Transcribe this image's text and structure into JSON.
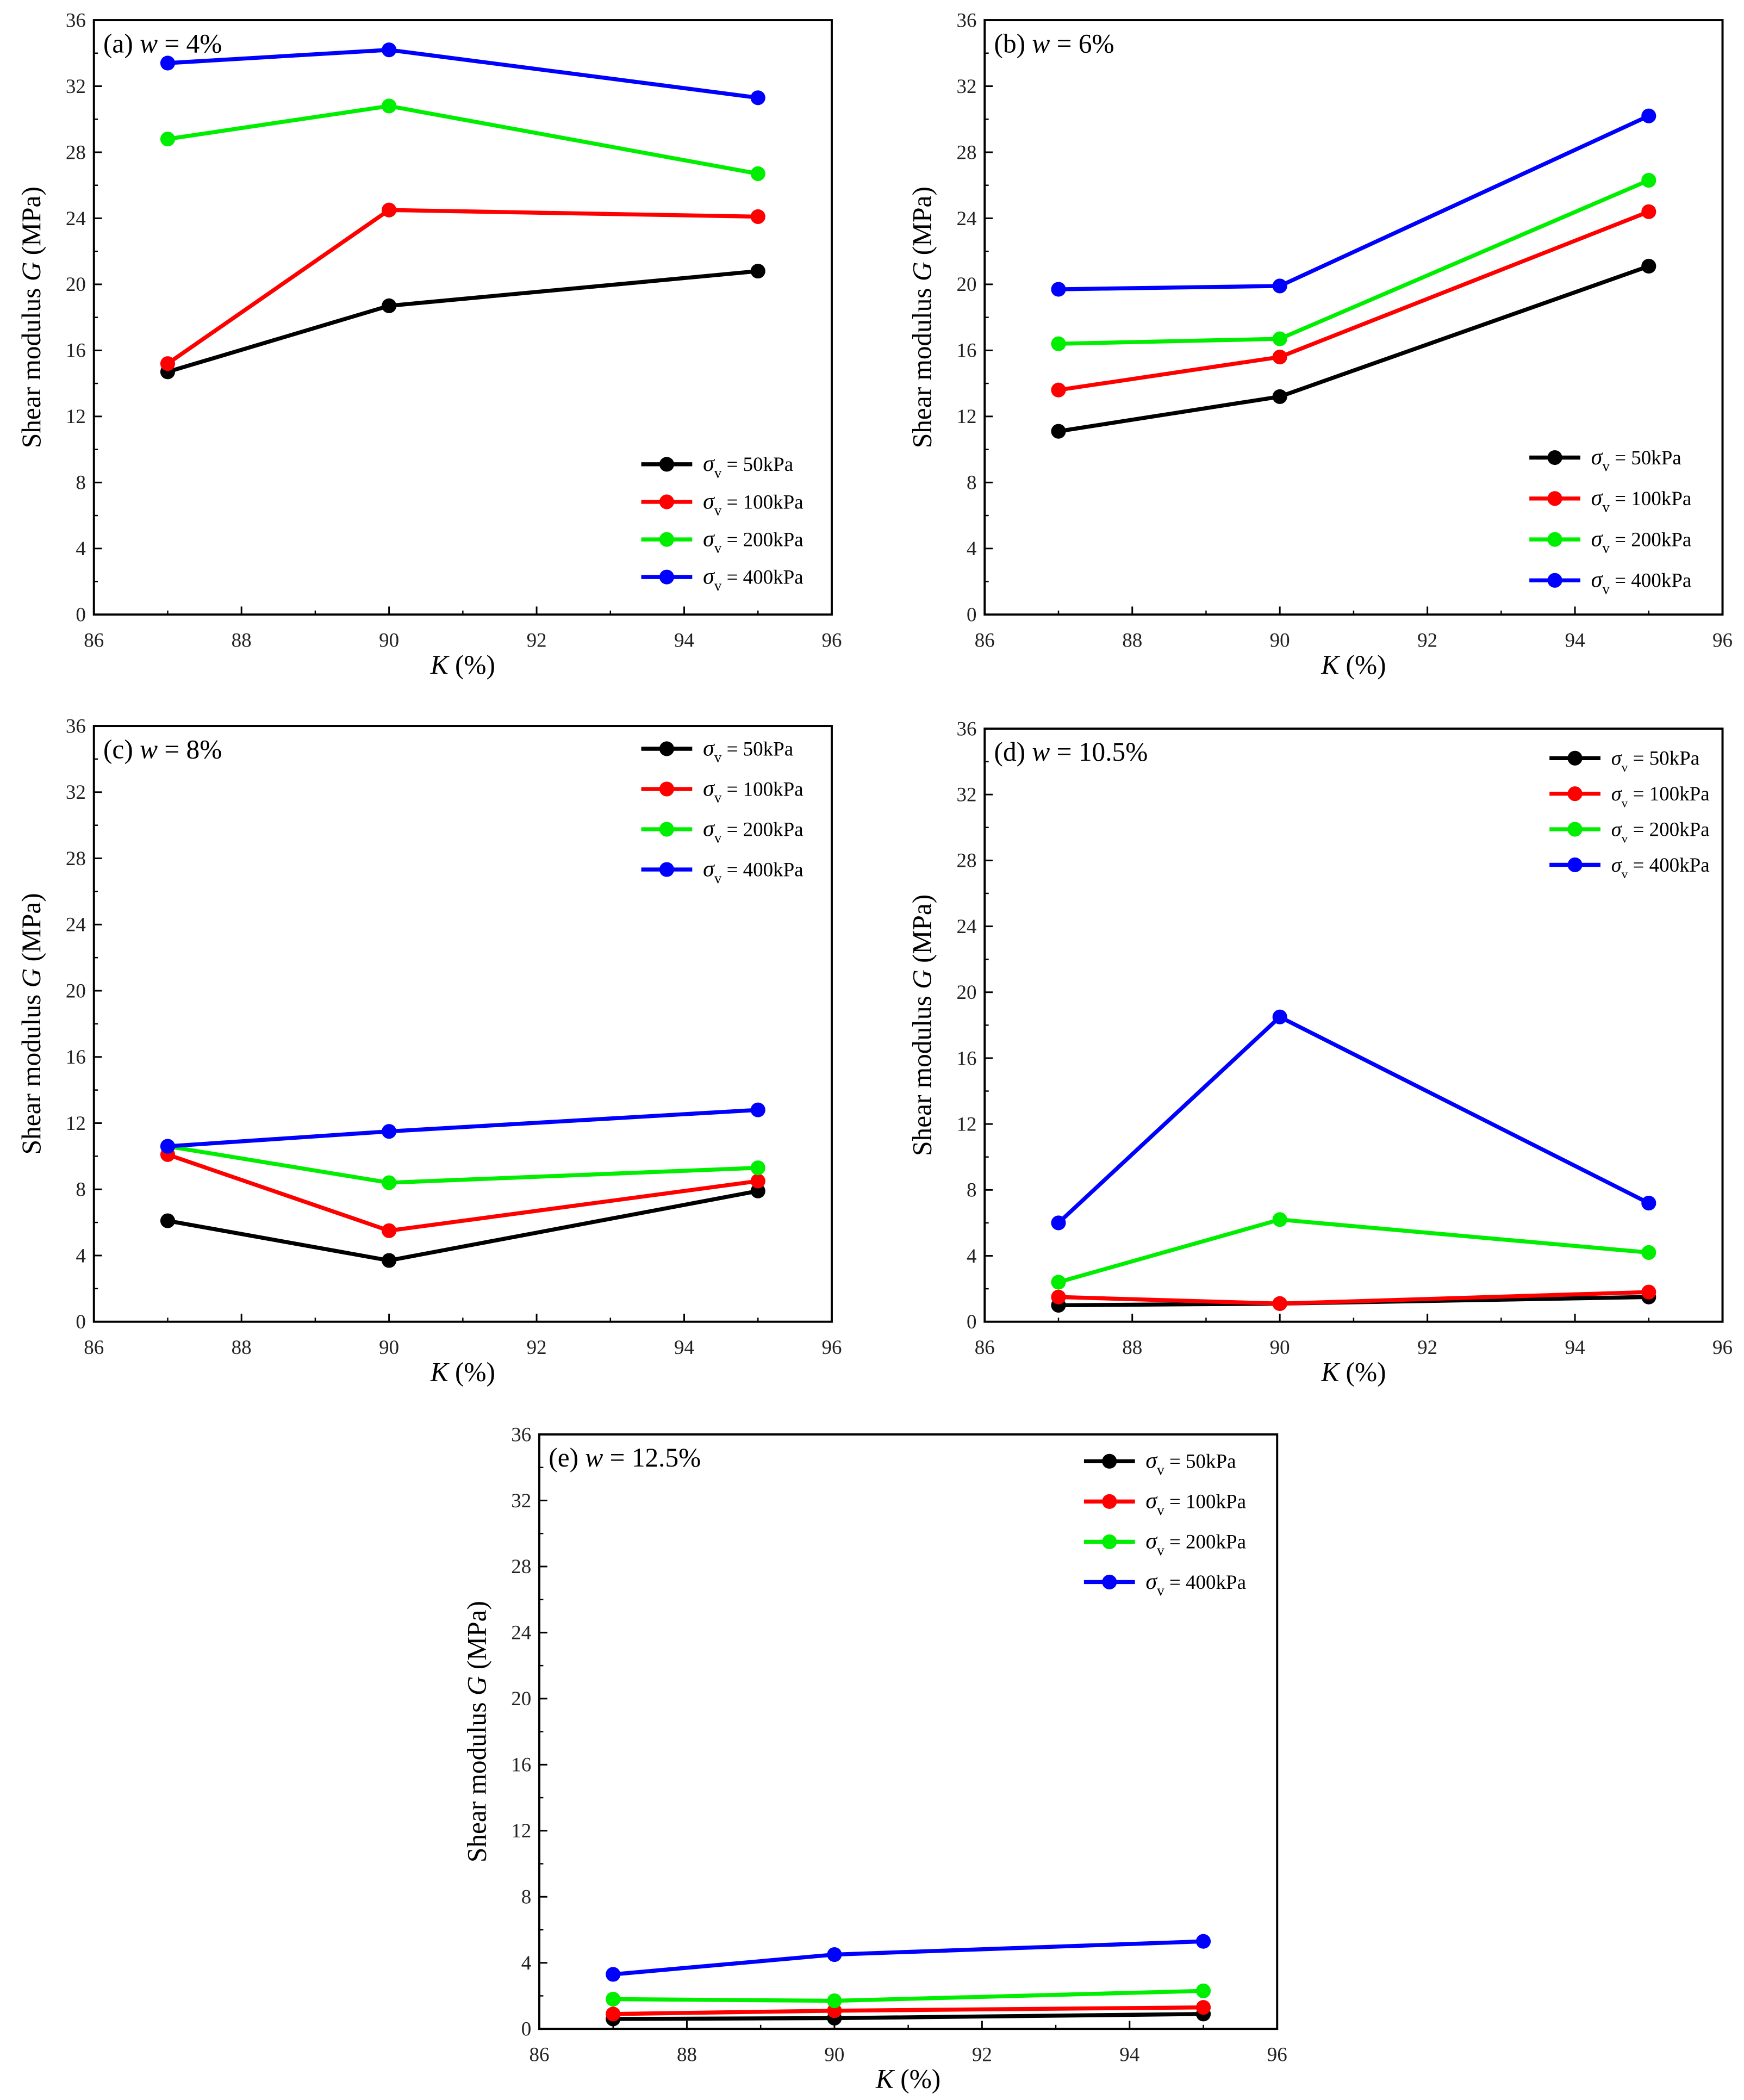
{
  "chart_data": [
    {
      "type": "line",
      "title": "(a) w = 4%",
      "title_prefix": "(a) ",
      "title_var": "w",
      "title_value": " = 4%",
      "xlabel_var": "K",
      "xlabel_unit": " (%)",
      "ylabel_text": "Shear modulus  ",
      "ylabel_var": "G",
      "ylabel_unit": " (MPa)",
      "xlim": [
        86,
        96
      ],
      "ylim": [
        0,
        36
      ],
      "xticks": [
        86,
        88,
        90,
        92,
        94,
        96
      ],
      "yticks": [
        0,
        4,
        8,
        12,
        16,
        20,
        24,
        28,
        32,
        36
      ],
      "legend_placement": "bottom-right",
      "grid": false,
      "x": [
        87,
        90,
        95
      ],
      "series": [
        {
          "name": "σv = 50kPa",
          "sym": "σ",
          "sub": "v",
          "rest": " = 50kPa",
          "color": "#000000",
          "values": [
            14.7,
            18.7,
            20.8
          ]
        },
        {
          "name": "σv = 100kPa",
          "sym": "σ",
          "sub": "v",
          "rest": " = 100kPa",
          "color": "#ff0000",
          "values": [
            15.2,
            24.5,
            24.1
          ]
        },
        {
          "name": "σv = 200kPa",
          "sym": "σ",
          "sub": "v",
          "rest": " = 200kPa",
          "color": "#00ee00",
          "values": [
            28.8,
            30.8,
            26.7
          ]
        },
        {
          "name": "σv = 400kPa",
          "sym": "σ",
          "sub": "v",
          "rest": " = 400kPa",
          "color": "#0000ff",
          "values": [
            33.4,
            34.2,
            31.3
          ]
        }
      ]
    },
    {
      "type": "line",
      "title": "(b) w = 6%",
      "title_prefix": "(b) ",
      "title_var": "w",
      "title_value": " = 6%",
      "xlabel_var": "K",
      "xlabel_unit": " (%)",
      "ylabel_text": "Shear modulus  ",
      "ylabel_var": "G",
      "ylabel_unit": " (MPa)",
      "xlim": [
        86,
        96
      ],
      "ylim": [
        0,
        36
      ],
      "xticks": [
        86,
        88,
        90,
        92,
        94,
        96
      ],
      "yticks": [
        0,
        4,
        8,
        12,
        16,
        20,
        24,
        28,
        32,
        36
      ],
      "legend_placement": "bottom-right",
      "grid": false,
      "x": [
        87,
        90,
        95
      ],
      "series": [
        {
          "name": "σv = 50kPa",
          "sym": "σ",
          "sub": "v",
          "rest": " = 50kPa",
          "color": "#000000",
          "values": [
            11.1,
            13.2,
            21.1
          ]
        },
        {
          "name": "σv = 100kPa",
          "sym": "σ",
          "sub": "v",
          "rest": " = 100kPa",
          "color": "#ff0000",
          "values": [
            13.6,
            15.6,
            24.4
          ]
        },
        {
          "name": "σv = 200kPa",
          "sym": "σ",
          "sub": "v",
          "rest": " = 200kPa",
          "color": "#00ee00",
          "values": [
            16.4,
            16.7,
            26.3
          ]
        },
        {
          "name": "σv = 400kPa",
          "sym": "σ",
          "sub": "v",
          "rest": " = 400kPa",
          "color": "#0000ff",
          "values": [
            19.7,
            19.9,
            30.2
          ]
        }
      ]
    },
    {
      "type": "line",
      "title": "(c) w = 8%",
      "title_prefix": "(c) ",
      "title_var": "w",
      "title_value": " = 8%",
      "xlabel_var": "K",
      "xlabel_unit": " (%)",
      "ylabel_text": "Shear modulus  ",
      "ylabel_var": "G",
      "ylabel_unit": " (MPa)",
      "xlim": [
        86,
        96
      ],
      "ylim": [
        0,
        36
      ],
      "xticks": [
        86,
        88,
        90,
        92,
        94,
        96
      ],
      "yticks": [
        0,
        4,
        8,
        12,
        16,
        20,
        24,
        28,
        32,
        36
      ],
      "legend_placement": "top-right",
      "grid": false,
      "x": [
        87,
        90,
        95
      ],
      "series": [
        {
          "name": "σv = 50kPa",
          "sym": "σ",
          "sub": "v",
          "rest": " = 50kPa",
          "color": "#000000",
          "values": [
            6.1,
            3.7,
            7.9
          ]
        },
        {
          "name": "σv = 100kPa",
          "sym": "σ",
          "sub": "v",
          "rest": " = 100kPa",
          "color": "#ff0000",
          "values": [
            10.1,
            5.5,
            8.5
          ]
        },
        {
          "name": "σv = 200kPa",
          "sym": "σ",
          "sub": "v",
          "rest": " = 200kPa",
          "color": "#00ee00",
          "values": [
            10.6,
            8.4,
            9.3
          ]
        },
        {
          "name": "σv = 400kPa",
          "sym": "σ",
          "sub": "v",
          "rest": " = 400kPa",
          "color": "#0000ff",
          "values": [
            10.6,
            11.5,
            12.8
          ]
        }
      ]
    },
    {
      "type": "line",
      "title": "(d) w = 10.5%",
      "title_prefix": "(d) ",
      "title_var": "w",
      "title_value": " = 10.5%",
      "xlabel_var": "K",
      "xlabel_unit": " (%)",
      "ylabel_text": "Shear modulus  ",
      "ylabel_var": "G",
      "ylabel_unit": " (MPa)",
      "xlim": [
        86,
        96
      ],
      "ylim": [
        0,
        36
      ],
      "xticks": [
        86,
        88,
        90,
        92,
        94,
        96
      ],
      "yticks": [
        0,
        4,
        8,
        12,
        16,
        20,
        24,
        28,
        32,
        36
      ],
      "legend_placement": "top-right",
      "grid": false,
      "x": [
        87,
        90,
        95
      ],
      "series": [
        {
          "name": "σv = 50kPa",
          "sym": "σ",
          "sub": "v",
          "rest": " = 50kPa",
          "color": "#000000",
          "values": [
            1.0,
            1.1,
            1.5
          ]
        },
        {
          "name": "σv = 100kPa",
          "sym": "σ",
          "sub": "v",
          "rest": " = 100kPa",
          "color": "#ff0000",
          "values": [
            1.5,
            1.1,
            1.8
          ]
        },
        {
          "name": "σv = 200kPa",
          "sym": "σ",
          "sub": "v",
          "rest": " = 200kPa",
          "color": "#00ee00",
          "values": [
            2.4,
            6.2,
            4.2
          ]
        },
        {
          "name": "σv = 400kPa",
          "sym": "σ",
          "sub": "v",
          "rest": " = 400kPa",
          "color": "#0000ff",
          "values": [
            6.0,
            18.5,
            7.2
          ]
        }
      ]
    },
    {
      "type": "line",
      "title": "(e) w = 12.5%",
      "title_prefix": "(e) ",
      "title_var": "w",
      "title_value": " = 12.5%",
      "xlabel_var": "K",
      "xlabel_unit": " (%)",
      "ylabel_text": "Shear modulus  ",
      "ylabel_var": "G",
      "ylabel_unit": " (MPa)",
      "xlim": [
        86,
        96
      ],
      "ylim": [
        0,
        36
      ],
      "xticks": [
        86,
        88,
        90,
        92,
        94,
        96
      ],
      "yticks": [
        0,
        4,
        8,
        12,
        16,
        20,
        24,
        28,
        32,
        36
      ],
      "legend_placement": "top-right",
      "grid": false,
      "x": [
        87,
        90,
        95
      ],
      "series": [
        {
          "name": "σv = 50kPa",
          "sym": "σ",
          "sub": "v",
          "rest": " = 50kPa",
          "color": "#000000",
          "values": [
            0.6,
            0.65,
            0.9
          ]
        },
        {
          "name": "σv = 100kPa",
          "sym": "σ",
          "sub": "v",
          "rest": " = 100kPa",
          "color": "#ff0000",
          "values": [
            0.9,
            1.1,
            1.3
          ]
        },
        {
          "name": "σv = 200kPa",
          "sym": "σ",
          "sub": "v",
          "rest": " = 200kPa",
          "color": "#00ee00",
          "values": [
            1.8,
            1.7,
            2.3
          ]
        },
        {
          "name": "σv = 400kPa",
          "sym": "σ",
          "sub": "v",
          "rest": " = 400kPa",
          "color": "#0000ff",
          "values": [
            3.3,
            4.5,
            5.3
          ]
        }
      ]
    }
  ]
}
